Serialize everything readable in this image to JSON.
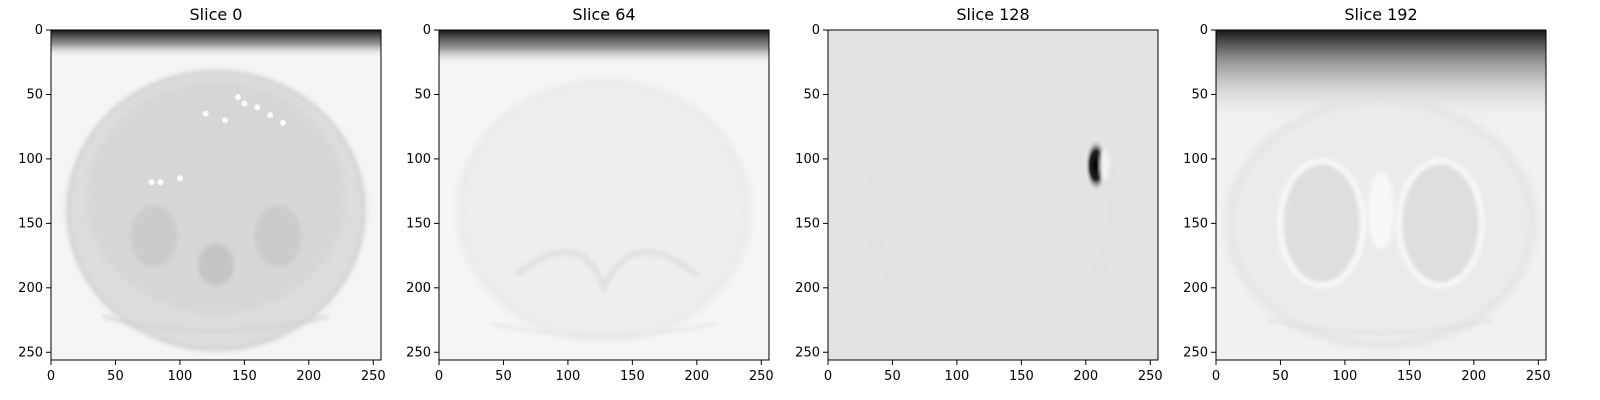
{
  "chart_data": [
    {
      "type": "heatmap",
      "title": "Slice 0",
      "xlim": [
        0,
        256
      ],
      "ylim": [
        256,
        0
      ],
      "xticks": [
        "0",
        "50",
        "100",
        "150",
        "200",
        "250"
      ],
      "yticks": [
        "0",
        "50",
        "100",
        "150",
        "200",
        "250"
      ],
      "colormap": "gray",
      "content": "axial CT slice through abdomen",
      "grid": false
    },
    {
      "type": "heatmap",
      "title": "Slice 64",
      "xlim": [
        0,
        256
      ],
      "ylim": [
        256,
        0
      ],
      "xticks": [
        "0",
        "50",
        "100",
        "150",
        "200",
        "250"
      ],
      "yticks": [
        "0",
        "50",
        "100",
        "150",
        "200",
        "250"
      ],
      "colormap": "gray",
      "content": "axial CT slice through upper abdomen",
      "grid": false
    },
    {
      "type": "heatmap",
      "title": "Slice 128",
      "xlim": [
        0,
        256
      ],
      "ylim": [
        256,
        0
      ],
      "xticks": [
        "0",
        "50",
        "100",
        "150",
        "200",
        "250"
      ],
      "yticks": [
        "0",
        "50",
        "100",
        "150",
        "200",
        "250"
      ],
      "colormap": "gray",
      "content": "nearly uniform slice with one dark spot",
      "dark_spot": {
        "x": 208,
        "y": 105
      },
      "grid": false
    },
    {
      "type": "heatmap",
      "title": "Slice 192",
      "xlim": [
        0,
        256
      ],
      "ylim": [
        256,
        0
      ],
      "xticks": [
        "0",
        "50",
        "100",
        "150",
        "200",
        "250"
      ],
      "yticks": [
        "0",
        "50",
        "100",
        "150",
        "200",
        "250"
      ],
      "colormap": "gray",
      "content": "axial CT slice through thorax",
      "grid": false
    }
  ],
  "colors": {
    "background": "#ffffff",
    "frame": "#000000",
    "image_light": "#f2f2f2",
    "image_mid": "#e4e4e4",
    "image_dark": "#111111"
  }
}
